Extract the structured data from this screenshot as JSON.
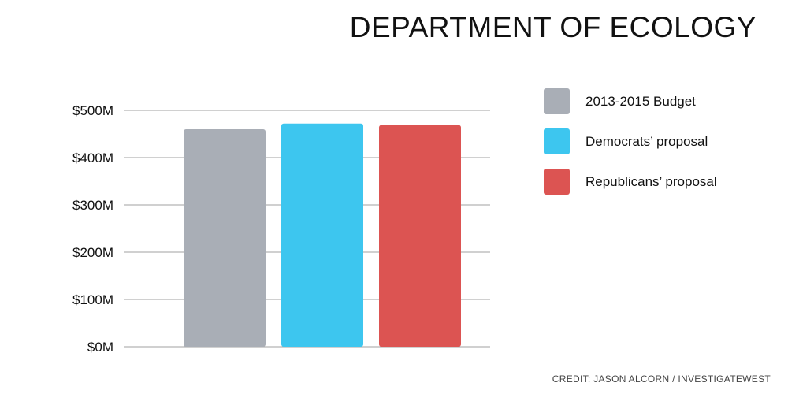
{
  "chart_data": {
    "type": "bar",
    "title": "DEPARTMENT OF ECOLOGY",
    "categories": [
      "2013-2015 Budget",
      "Democrats’ proposal",
      "Republicans’ proposal"
    ],
    "values": [
      460,
      472,
      469
    ],
    "unit": "$M",
    "ylim": [
      0,
      500
    ],
    "yticks": [
      {
        "value": 0,
        "label": "$0M"
      },
      {
        "value": 100,
        "label": "$100M"
      },
      {
        "value": 200,
        "label": "$200M"
      },
      {
        "value": 300,
        "label": "$300M"
      },
      {
        "value": 400,
        "label": "$400M"
      },
      {
        "value": 500,
        "label": "$500M"
      }
    ],
    "colors": [
      "#a9aeb6",
      "#3dc6ef",
      "#dc5452"
    ],
    "grid": true,
    "legend_position": "right",
    "legend": [
      {
        "label": "2013-2015 Budget",
        "color": "#a9aeb6"
      },
      {
        "label": "Democrats’ proposal",
        "color": "#3dc6ef"
      },
      {
        "label": "Republicans’ proposal",
        "color": "#dc5452"
      }
    ]
  },
  "credit": "CREDIT: JASON ALCORN / INVESTIGATEWEST"
}
